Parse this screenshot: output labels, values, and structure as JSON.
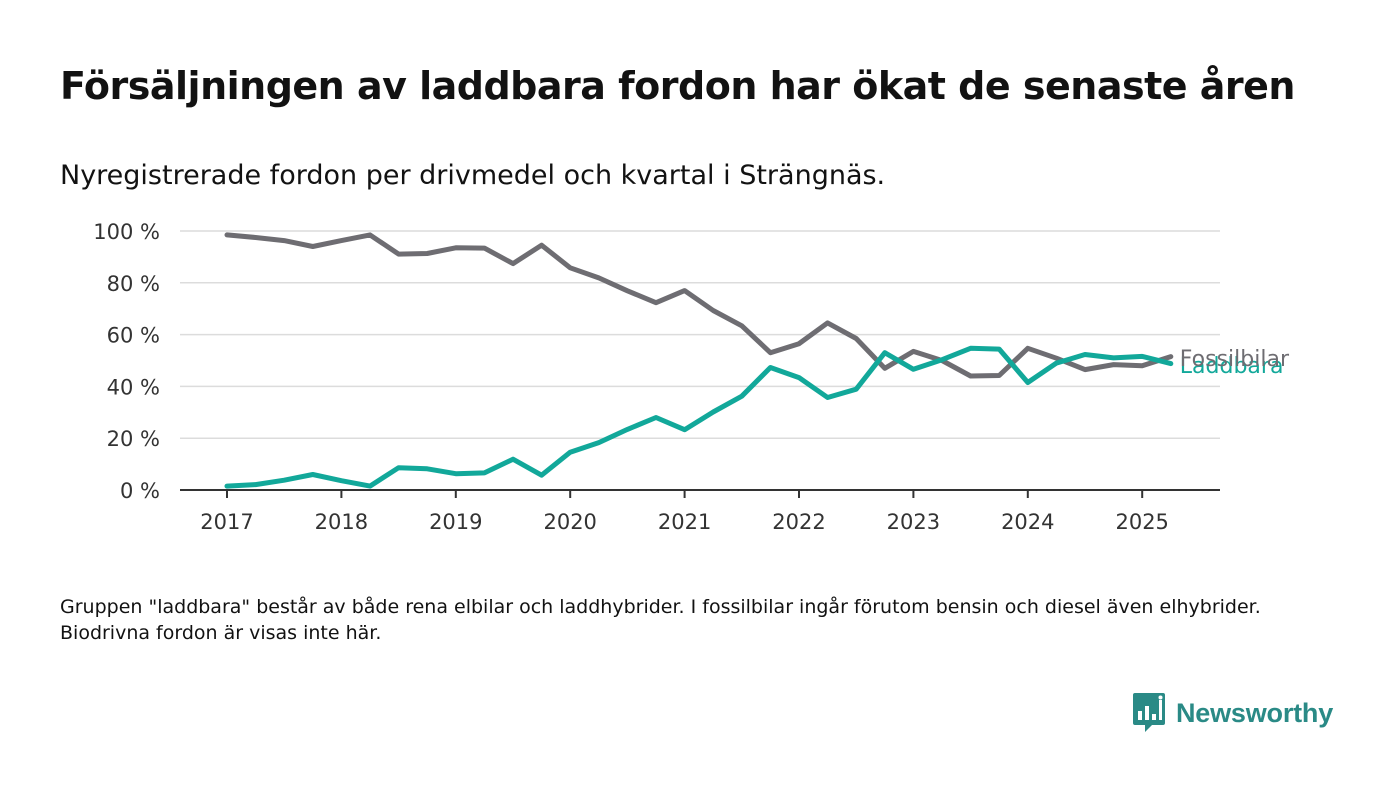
{
  "title": "Försäljningen av laddbara fordon har ökat de senaste åren",
  "subtitle": "Nyregistrerade fordon per drivmedel och kvartal i Strängnäs.",
  "footnote": "Gruppen \"laddbara\" består av både rena elbilar och laddhybrider. I fossilbilar ingår förutom bensin och diesel även elhybrider. Biodrivna fordon är visas inte här.",
  "brand": {
    "name": "Newsworthy",
    "logo_icon": "bar-chart-speech-bubble-icon",
    "color": "#2a8a86"
  },
  "chart_data": {
    "type": "line",
    "x_ticks": [
      "2017",
      "2018",
      "2019",
      "2020",
      "2021",
      "2022",
      "2023",
      "2024",
      "2025"
    ],
    "y_ticks": [
      "0 %",
      "20 %",
      "40 %",
      "60 %",
      "80 %",
      "100 %"
    ],
    "ylim": [
      0,
      100
    ],
    "xlim": [
      "2016-10",
      "2025-12"
    ],
    "grid": true,
    "legend": "end-of-line labels",
    "x": [
      "2017-Q1",
      "2017-Q2",
      "2017-Q3",
      "2017-Q4",
      "2018-Q1",
      "2018-Q2",
      "2018-Q3",
      "2018-Q4",
      "2019-Q1",
      "2019-Q2",
      "2019-Q3",
      "2019-Q4",
      "2020-Q1",
      "2020-Q2",
      "2020-Q3",
      "2020-Q4",
      "2021-Q1",
      "2021-Q2",
      "2021-Q3",
      "2021-Q4",
      "2022-Q1",
      "2022-Q2",
      "2022-Q3",
      "2022-Q4",
      "2023-Q1",
      "2023-Q2",
      "2023-Q3",
      "2023-Q4",
      "2024-Q1",
      "2024-Q2",
      "2024-Q3",
      "2024-Q4",
      "2025-Q1",
      "2025-Q2"
    ],
    "series": [
      {
        "name": "Fossilbilar",
        "color": "#6e6d72",
        "values": [
          98.5,
          97.5,
          96.3,
          94.0,
          96.3,
          98.5,
          91.1,
          91.3,
          93.5,
          93.4,
          87.4,
          94.5,
          85.8,
          81.9,
          76.9,
          72.3,
          77.0,
          69.3,
          63.4,
          53.0,
          56.5,
          64.5,
          58.5,
          47.0,
          53.5,
          50.0,
          44.0,
          44.2,
          54.7,
          50.9,
          46.5,
          48.4,
          48.0,
          51.5
        ]
      },
      {
        "name": "Laddbara",
        "color": "#12a89a",
        "values": [
          1.5,
          2.1,
          3.8,
          6.0,
          3.6,
          1.5,
          8.6,
          8.2,
          6.3,
          6.6,
          11.9,
          5.7,
          14.6,
          18.3,
          23.4,
          28.0,
          23.3,
          30.1,
          36.2,
          47.3,
          43.4,
          35.7,
          38.9,
          53.0,
          46.6,
          50.3,
          54.7,
          54.4,
          41.5,
          49.0,
          52.3,
          51.0,
          51.6,
          48.8
        ]
      }
    ]
  }
}
